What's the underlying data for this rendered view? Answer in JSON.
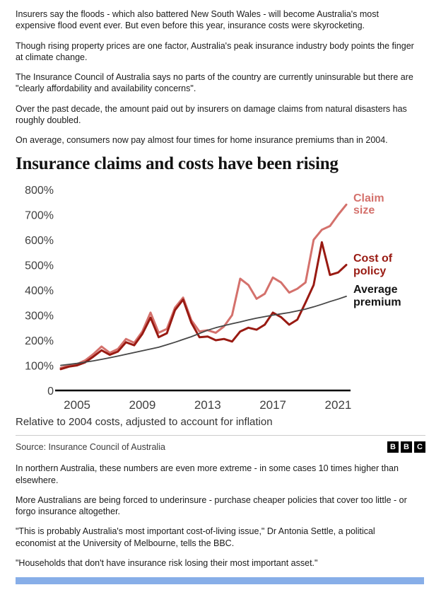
{
  "article": {
    "paragraphs_top": [
      "Insurers say the floods - which also battered New South Wales - will become Australia's most expensive flood event ever. But even before this year, insurance costs were skyrocketing.",
      "Though rising property prices are one factor, Australia's peak insurance industry body points the finger at climate change.",
      "The Insurance Council of Australia says no parts of the country are currently uninsurable but there are \"clearly affordability and availability concerns\".",
      "Over the past decade, the amount paid out by insurers on damage claims from natural disasters has roughly doubled.",
      "On average, consumers now pay almost four times for home insurance premiums than in 2004."
    ],
    "paragraphs_bottom": [
      "In northern Australia, these numbers are even more extreme - in some cases 10 times higher than elsewhere.",
      "More Australians are being forced to underinsure - purchase cheaper policies that cover too little - or forgo insurance altogether.",
      "\"This is probably Australia's most important cost-of-living issue,\" Dr Antonia Settle, a political economist at the University of Melbourne, tells the BBC.",
      "\"Households that don't have insurance risk losing their most important asset.\""
    ]
  },
  "branding": {
    "logo_letters": [
      "B",
      "B",
      "C"
    ]
  },
  "ui": {
    "bottom_bar_color": "#87aee8",
    "axis_color": "#000000",
    "tick_text_color": "#404040"
  },
  "chart_data": {
    "type": "line",
    "title": "Insurance claims and costs have been rising",
    "caption": "Relative to 2004 costs, adjusted to account for inflation",
    "source": "Source: Insurance Council of Australia",
    "xlabel": "",
    "ylabel": "",
    "ylim": [
      0,
      800
    ],
    "grid": false,
    "legend_position": "right-of-lines",
    "y_ticks": [
      {
        "value": 800,
        "label": "800%"
      },
      {
        "value": 700,
        "label": "700%"
      },
      {
        "value": 600,
        "label": "600%"
      },
      {
        "value": 500,
        "label": "500%"
      },
      {
        "value": 400,
        "label": "400%"
      },
      {
        "value": 300,
        "label": "300%"
      },
      {
        "value": 200,
        "label": "200%"
      },
      {
        "value": 100,
        "label": "100%"
      },
      {
        "value": 0,
        "label": "0"
      }
    ],
    "x_ticks": [
      2005,
      2009,
      2013,
      2017,
      2021
    ],
    "x": [
      2004,
      2004.5,
      2005,
      2005.5,
      2006,
      2006.5,
      2007,
      2007.5,
      2008,
      2008.5,
      2009,
      2009.5,
      2010,
      2010.5,
      2011,
      2011.5,
      2012,
      2012.5,
      2013,
      2013.5,
      2014,
      2014.5,
      2015,
      2015.5,
      2016,
      2016.5,
      2017,
      2017.5,
      2018,
      2018.5,
      2019,
      2019.5,
      2020,
      2020.5,
      2021,
      2021.5
    ],
    "series": [
      {
        "name": "Claim size",
        "color": "#d4716c",
        "width": 3,
        "values": [
          90,
          100,
          105,
          120,
          145,
          175,
          150,
          165,
          205,
          190,
          235,
          310,
          230,
          245,
          330,
          370,
          280,
          235,
          240,
          230,
          255,
          300,
          445,
          420,
          365,
          385,
          450,
          430,
          390,
          405,
          430,
          600,
          640,
          655,
          700,
          740
        ]
      },
      {
        "name": "Cost of policy",
        "color": "#991a12",
        "width": 3,
        "values": [
          85,
          95,
          100,
          112,
          135,
          160,
          142,
          155,
          192,
          180,
          225,
          290,
          212,
          228,
          320,
          362,
          270,
          212,
          215,
          200,
          205,
          195,
          235,
          250,
          242,
          262,
          310,
          292,
          262,
          282,
          350,
          420,
          590,
          460,
          470,
          500
        ]
      },
      {
        "name": "Average premium",
        "color": "#474747",
        "label_color": "#141414",
        "width": 1.8,
        "values": [
          100,
          104,
          108,
          113,
          118,
          124,
          130,
          137,
          144,
          151,
          158,
          165,
          172,
          182,
          192,
          203,
          214,
          227,
          240,
          250,
          258,
          266,
          273,
          281,
          288,
          294,
          300,
          305,
          310,
          317,
          324,
          333,
          343,
          354,
          364,
          375
        ]
      }
    ]
  }
}
